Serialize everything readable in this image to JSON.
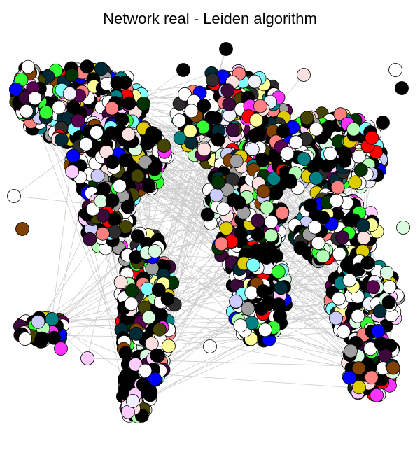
{
  "title": "Network real - Leiden algorithm",
  "edge_color": "#cccccc",
  "node_stroke": "#000000",
  "community_palette": [
    "#000000",
    "#ffffff",
    "#002b36",
    "#3b0a3b",
    "#f0f0ff",
    "#ffe0e0",
    "#d9fce0",
    "#5a0050",
    "#ff8080",
    "#ccccff",
    "#444400",
    "#003300",
    "#ffff99",
    "#80ffff",
    "#ff33ff",
    "#33ff33",
    "#0000ff",
    "#ff0000",
    "#ddcc00",
    "#a0a0a0",
    "#008080",
    "#ffccff",
    "#2d2d2d",
    "#b3ffb3",
    "#804000"
  ],
  "node_count_est": 2400
}
